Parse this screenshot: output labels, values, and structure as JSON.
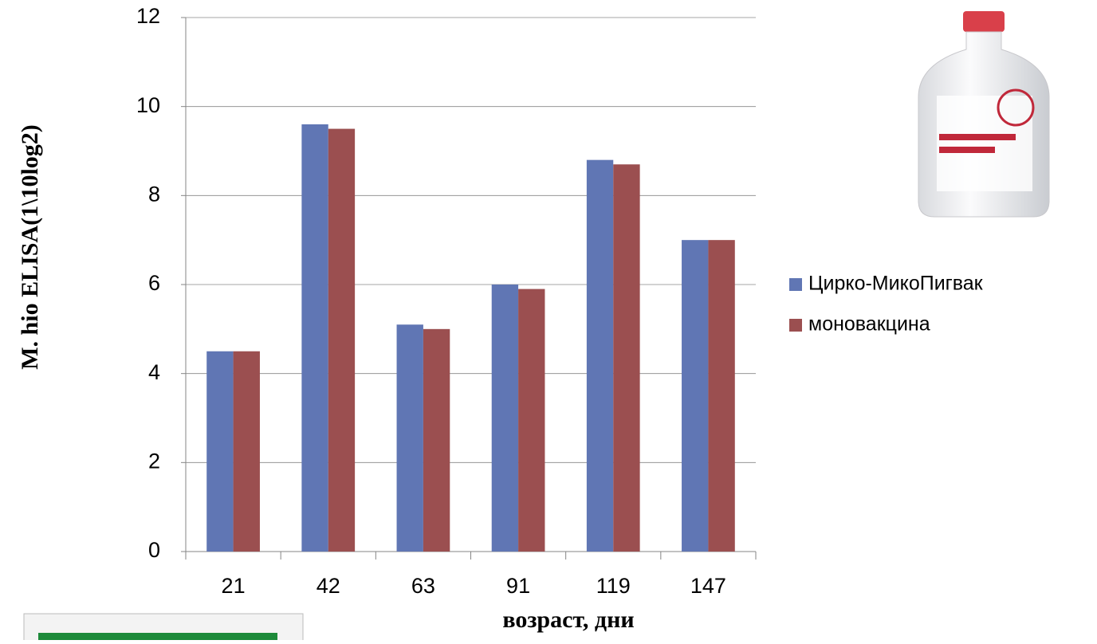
{
  "chart_data": {
    "type": "bar",
    "y_label": "M. hio ELISA(1\\10log2)",
    "x_label": "возраст, дни",
    "categories": [
      "21",
      "42",
      "63",
      "91",
      "119",
      "147"
    ],
    "series": [
      {
        "name": "Цирко-МикоПигвак",
        "color": "#6076b4",
        "values": [
          4.5,
          9.6,
          5.1,
          6.0,
          8.8,
          7.0
        ]
      },
      {
        "name": "моновакцина",
        "color": "#9b4f50",
        "values": [
          4.5,
          9.5,
          5.0,
          5.9,
          8.7,
          7.0
        ]
      }
    ],
    "ylim": [
      0,
      12
    ],
    "yticks": [
      0,
      2,
      4,
      6,
      8,
      10,
      12
    ],
    "grid": true
  }
}
